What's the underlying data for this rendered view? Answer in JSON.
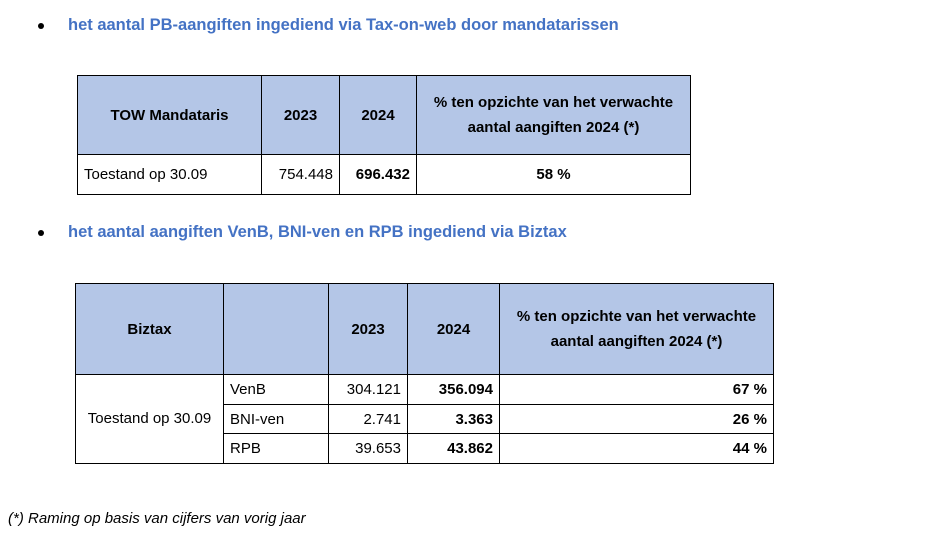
{
  "section1": {
    "bullet": "het aantal PB-aangiften ingediend via Tax-on-web door mandatarissen",
    "table": {
      "headers": [
        "TOW Mandataris",
        "2023",
        "2024",
        "% ten opzichte van het verwachte aantal aangiften 2024 (*)"
      ],
      "row": {
        "label": "Toestand op 30.09",
        "v2023": "754.448",
        "v2024": "696.432",
        "pct": "58 %"
      }
    }
  },
  "section2": {
    "bullet": "het aantal aangiften VenB, BNI-ven en RPB ingediend via Biztax",
    "table": {
      "headers": [
        "Biztax",
        "",
        "2023",
        "2024",
        "% ten opzichte van het verwachte aantal aangiften 2024 (*)"
      ],
      "group_label": "Toestand op 30.09",
      "rows": [
        {
          "type": "VenB",
          "v2023": "304.121",
          "v2024": "356.094",
          "pct": "67 %"
        },
        {
          "type": "BNI-ven",
          "v2023": "2.741",
          "v2024": "3.363",
          "pct": "26 %"
        },
        {
          "type": "RPB",
          "v2023": "39.653",
          "v2024": "43.862",
          "pct": "44 %"
        }
      ]
    }
  },
  "footnote": "(*) Raming op basis van cijfers van vorig jaar"
}
